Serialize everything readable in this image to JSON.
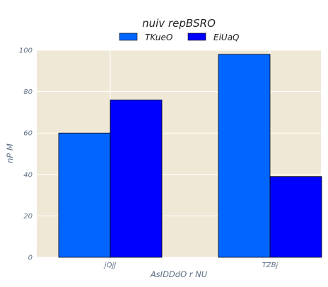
{
  "chart_data": {
    "type": "bar",
    "title": "nuiv  repBSRO",
    "xlabel": "AsIDDdO r NU",
    "ylabel": "nP M",
    "categories": [
      "jQjJ",
      "TZBj"
    ],
    "series": [
      {
        "name": "TKueO",
        "values": [
          60,
          98
        ],
        "color": "#0066ff"
      },
      {
        "name": "EiUaQ",
        "values": [
          76,
          39
        ],
        "color": "#0000ff"
      }
    ],
    "ylim": [
      0,
      100
    ],
    "yticks": [
      0,
      20,
      40,
      60,
      80,
      100
    ],
    "grid": true,
    "legend": "top-center",
    "colors": {
      "plot_bg": "#efe8d6",
      "grid": "#ffffff",
      "tick_text": "#5f7185"
    }
  }
}
